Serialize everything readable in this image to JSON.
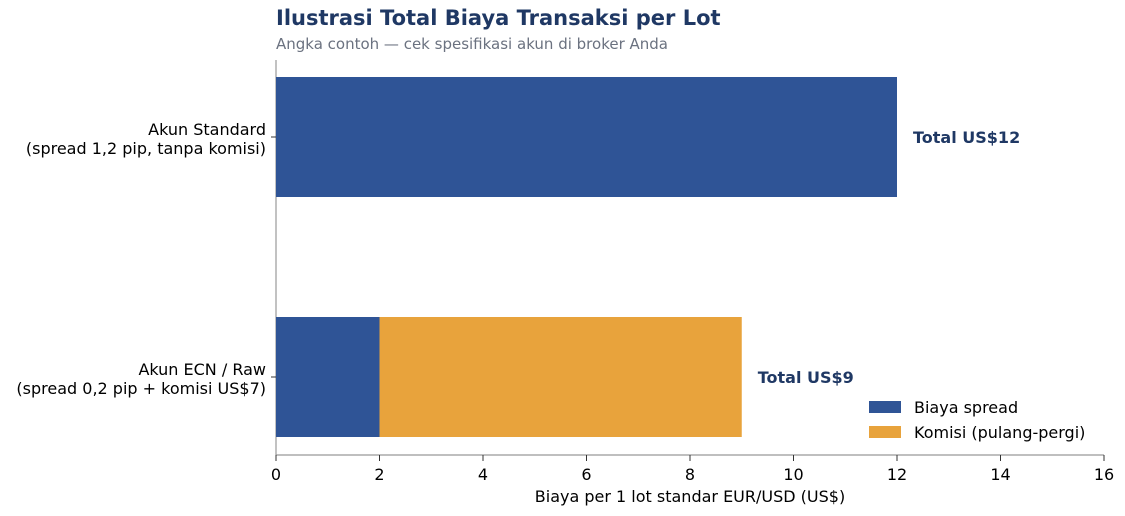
{
  "chart_data": {
    "type": "bar",
    "orientation": "horizontal",
    "stacked": true,
    "title": "Ilustrasi Total Biaya Transaksi per Lot",
    "subtitle": "Angka contoh — cek spesifikasi akun di broker Anda",
    "xlabel": "Biaya per 1 lot standar EUR/USD (US$)",
    "ylabel": "",
    "xlim": [
      0,
      16
    ],
    "xticks": [
      "0",
      "2",
      "4",
      "6",
      "8",
      "10",
      "12",
      "14",
      "16"
    ],
    "categories": [
      [
        "Akun Standard",
        "(spread 1,2 pip, tanpa komisi)"
      ],
      [
        "Akun ECN / Raw",
        "(spread 0,2 pip + komisi US$7)"
      ]
    ],
    "series": [
      {
        "name": "Biaya spread",
        "color": "#2f5496",
        "values": [
          12,
          2
        ]
      },
      {
        "name": "Komisi (pulang-pergi)",
        "color": "#e8a33c",
        "values": [
          0,
          7
        ]
      }
    ],
    "totals": [
      "Total US$12",
      "Total US$9"
    ],
    "legend_position": "bottom-right",
    "grid": false
  }
}
